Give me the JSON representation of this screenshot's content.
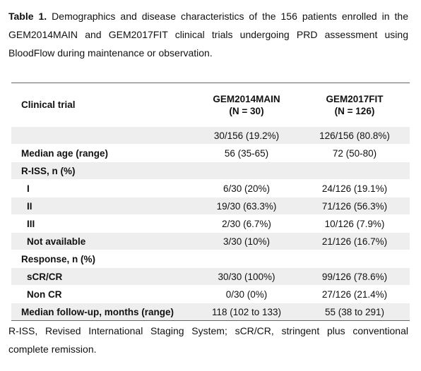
{
  "caption": {
    "label": "Table 1.",
    "text": "Demographics and disease characteristics of the 156 patients enrolled in the GEM2014MAIN and GEM2017FIT clinical trials undergoing PRD assessment using BloodFlow during maintenance or observation."
  },
  "table": {
    "header": [
      "Clinical trial",
      [
        "GEM2014MAIN",
        "(N = 30)"
      ],
      [
        "GEM2017FIT",
        "(N = 126)"
      ]
    ],
    "rows": [
      [
        null,
        "30/156 (19.2%)",
        "126/156 (80.8%)"
      ],
      [
        "Median age (range)",
        "56 (35-65)",
        "72 (50-80)"
      ],
      [
        "R-ISS, n (%)",
        null,
        null
      ],
      [
        "I",
        "6/30 (20%)",
        "24/126 (19.1%)"
      ],
      [
        "II",
        "19/30 (63.3%)",
        "71/126 (56.3%)"
      ],
      [
        "III",
        "2/30 (6.7%)",
        "10/126 (7.9%)"
      ],
      [
        "Not available",
        "3/30 (10%)",
        "21/126 (16.7%)"
      ],
      [
        "Response, n (%)",
        null,
        null
      ],
      [
        "sCR/CR",
        "30/30 (100%)",
        "99/126 (78.6%)"
      ],
      [
        "Non CR",
        "0/30 (0%)",
        "27/126 (21.4%)"
      ],
      [
        "Median follow-up, months (range)",
        "118 (102 to 133)",
        "55 (38 to 291)"
      ]
    ]
  },
  "footnote": "R-ISS, Revised International Staging System; sCR/CR, stringent plus conventional complete remission."
}
